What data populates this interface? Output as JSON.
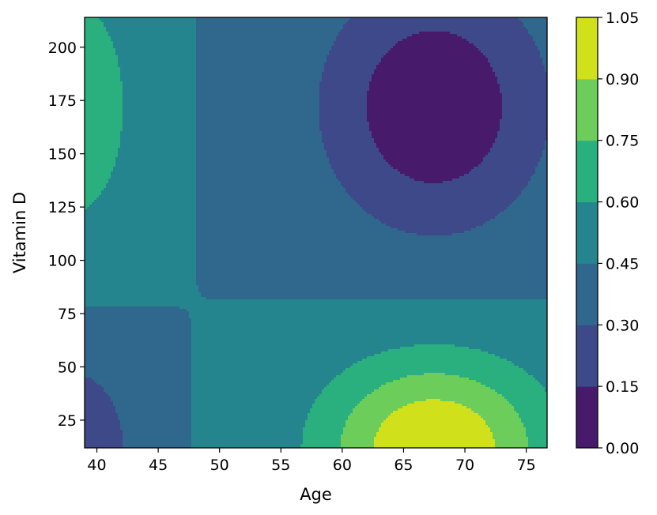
{
  "chart_data": {
    "type": "contour",
    "title": "",
    "xlabel": "Age",
    "ylabel": "Vitamin D",
    "xlim": [
      39,
      76.7
    ],
    "ylim": [
      12,
      214
    ],
    "xticks": [
      40,
      45,
      50,
      55,
      60,
      65,
      70,
      75
    ],
    "yticks": [
      25,
      50,
      75,
      100,
      125,
      150,
      175,
      200
    ],
    "grid": false,
    "colormap": "viridis",
    "levels": [
      0.0,
      0.15,
      0.3,
      0.45,
      0.6,
      0.75,
      0.9,
      1.05
    ],
    "level_colors": [
      "#481a6c",
      "#3e4989",
      "#30678d",
      "#25858e",
      "#2ab07f",
      "#6ccd5a",
      "#d0e11c"
    ],
    "colorbar_ticks": [
      "0.00",
      "0.15",
      "0.30",
      "0.45",
      "0.60",
      "0.75",
      "0.90",
      "1.05"
    ],
    "regions": [
      {
        "level_range": [
          0.0,
          0.15
        ],
        "description": "minimum centered near Age 67, Vitamin D 170"
      },
      {
        "level_range": [
          0.9,
          1.05
        ],
        "description": "maximum near Age 67, Vitamin D 15"
      },
      {
        "level_range": [
          0.6,
          0.75
        ],
        "description": "local high near Age 39, Vitamin D 150"
      },
      {
        "level_range": [
          0.15,
          0.3
        ],
        "description": "local low near Age 39, Vitamin D 15"
      }
    ]
  }
}
